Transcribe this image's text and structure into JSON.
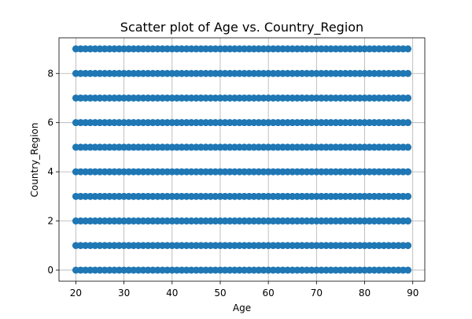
{
  "chart_data": {
    "type": "scatter",
    "title": "Scatter plot of Age vs. Country_Region",
    "xlabel": "Age",
    "ylabel": "Country_Region",
    "xlim": [
      16.5,
      92.5
    ],
    "ylim": [
      -0.45,
      9.45
    ],
    "xticks": [
      20,
      30,
      40,
      50,
      60,
      70,
      80,
      90
    ],
    "yticks": [
      0,
      2,
      4,
      6,
      8
    ],
    "grid": true,
    "marker_color": "#1f77b4",
    "x_range": [
      20,
      89
    ],
    "y_levels": [
      0,
      1,
      2,
      3,
      4,
      5,
      6,
      7,
      8,
      9
    ],
    "description": "Points at every integer Age from 20 to 89 for each Country_Region value 0 through 9"
  }
}
